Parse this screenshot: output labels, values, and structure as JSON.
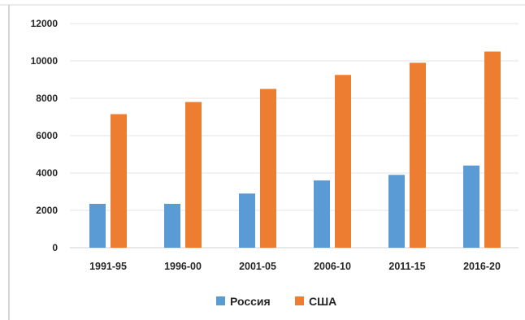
{
  "chart_data": {
    "type": "bar",
    "title": "",
    "xlabel": "",
    "ylabel": "",
    "categories": [
      "1991-95",
      "1996-00",
      "2001-05",
      "2006-10",
      "2011-15",
      "2016-20"
    ],
    "series": [
      {
        "name": "Россия",
        "color": "#5B9BD5",
        "values": [
          2350,
          2350,
          2900,
          3600,
          3900,
          4400
        ]
      },
      {
        "name": "США",
        "color": "#ED7D31",
        "values": [
          7150,
          7800,
          8500,
          9250,
          9900,
          10500
        ]
      }
    ],
    "ylim": [
      0,
      12000
    ],
    "yticks": [
      0,
      2000,
      4000,
      6000,
      8000,
      10000,
      12000
    ],
    "grid": true,
    "legend_position": "bottom"
  }
}
